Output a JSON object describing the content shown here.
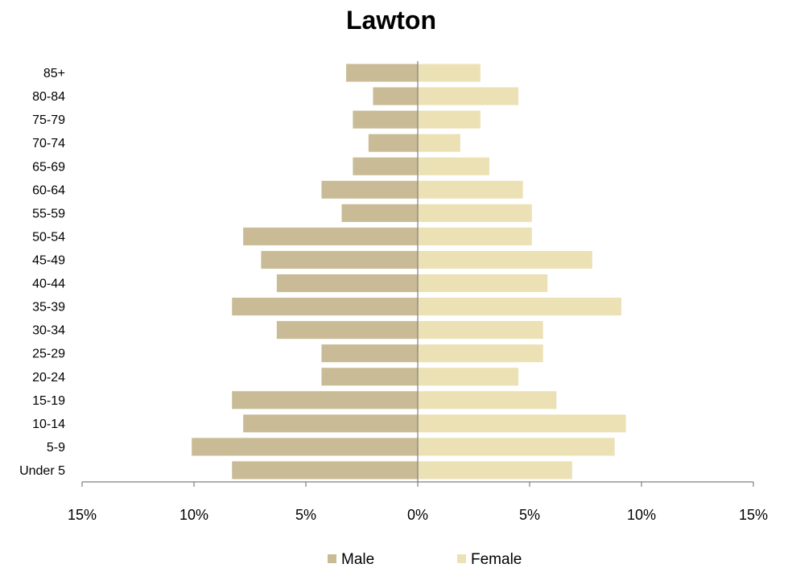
{
  "chart_data": {
    "type": "bar",
    "orientation": "horizontal",
    "subtype": "population-pyramid",
    "title": "Lawton",
    "categories": [
      "Under 5",
      "5-9",
      "10-14",
      "15-19",
      "20-24",
      "25-29",
      "30-34",
      "35-39",
      "40-44",
      "45-49",
      "50-54",
      "55-59",
      "60-64",
      "65-69",
      "70-74",
      "75-79",
      "80-84",
      "85+"
    ],
    "series": [
      {
        "name": "Male",
        "color": "#c8bb95",
        "values": [
          8.3,
          10.1,
          7.8,
          8.3,
          4.3,
          4.3,
          6.3,
          8.3,
          6.3,
          7.0,
          7.8,
          3.4,
          4.3,
          2.9,
          2.2,
          2.9,
          2.0,
          3.2
        ]
      },
      {
        "name": "Female",
        "color": "#ebe1b5",
        "values": [
          6.9,
          8.8,
          9.3,
          6.2,
          4.5,
          5.6,
          5.6,
          9.1,
          5.8,
          7.8,
          5.1,
          5.1,
          4.7,
          3.2,
          1.9,
          2.8,
          4.5,
          2.8
        ]
      }
    ],
    "x_ticks": [
      "15%",
      "10%",
      "5%",
      "0%",
      "5%",
      "10%",
      "15%"
    ],
    "xlim": [
      -15,
      15
    ],
    "unit": "%",
    "xlabel": "",
    "ylabel": "",
    "grid": false,
    "legend_position": "bottom"
  }
}
